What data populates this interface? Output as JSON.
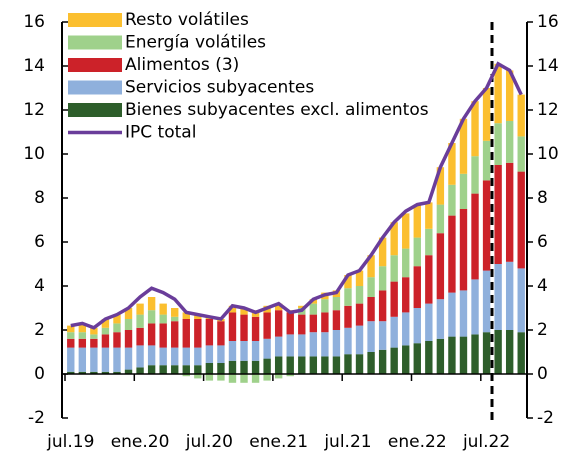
{
  "chart_data": {
    "type": "bar",
    "categories": [
      "jul.19",
      null,
      null,
      null,
      null,
      null,
      "ene.20",
      null,
      null,
      null,
      null,
      null,
      "jul.20",
      null,
      null,
      null,
      null,
      null,
      "ene.21",
      null,
      null,
      null,
      null,
      null,
      "jul.21",
      null,
      null,
      null,
      null,
      null,
      "ene.22",
      null,
      null,
      null,
      null,
      null,
      "jul.22",
      null,
      null,
      null
    ],
    "series": [
      {
        "name": "Resto volátiles",
        "type": "bar",
        "color": "#fbbf2f",
        "values": [
          0.3,
          0.4,
          0.3,
          0.4,
          0.4,
          0.5,
          0.5,
          0.6,
          0.5,
          0.4,
          0.3,
          0.2,
          0.1,
          0.1,
          0.3,
          0.3,
          0.3,
          0.3,
          0.3,
          0.1,
          0.1,
          0.2,
          0.3,
          0.3,
          0.6,
          0.7,
          1.0,
          1.3,
          1.5,
          1.6,
          1.5,
          1.2,
          1.7,
          1.9,
          2.5,
          2.5,
          2.4,
          2.7,
          2.3,
          1.9
        ]
      },
      {
        "name": "Energía volátiles",
        "type": "bar",
        "color": "#9fd18b",
        "values": [
          0.3,
          0.3,
          0.2,
          0.3,
          0.4,
          0.5,
          0.6,
          0.6,
          0.4,
          0.2,
          -0.1,
          -0.2,
          -0.3,
          -0.3,
          -0.4,
          -0.4,
          -0.4,
          -0.3,
          -0.2,
          -0.1,
          0.3,
          0.5,
          0.6,
          0.6,
          0.8,
          0.8,
          0.9,
          1.1,
          1.2,
          1.3,
          1.3,
          1.2,
          1.3,
          1.4,
          1.6,
          1.7,
          1.8,
          1.9,
          1.9,
          1.6
        ]
      },
      {
        "name": "Alimentos (3)",
        "type": "bar",
        "color": "#cc2229",
        "values": [
          0.4,
          0.4,
          0.4,
          0.6,
          0.7,
          0.8,
          0.8,
          1.0,
          1.1,
          1.2,
          1.3,
          1.3,
          1.2,
          1.1,
          1.3,
          1.2,
          1.1,
          1.2,
          1.2,
          1.0,
          0.9,
          0.8,
          0.9,
          0.9,
          1.0,
          1.0,
          1.1,
          1.4,
          1.6,
          1.6,
          1.9,
          2.2,
          3.0,
          3.5,
          3.7,
          3.9,
          4.1,
          4.5,
          4.5,
          4.4
        ]
      },
      {
        "name": "Servicios subyacentes",
        "type": "bar",
        "color": "#8fb0dc",
        "values": [
          1.1,
          1.1,
          1.1,
          1.1,
          1.1,
          1.0,
          1.0,
          0.9,
          0.8,
          0.8,
          0.8,
          0.8,
          0.8,
          0.8,
          0.9,
          0.9,
          0.9,
          0.9,
          0.9,
          1.0,
          1.0,
          1.1,
          1.1,
          1.2,
          1.2,
          1.3,
          1.4,
          1.3,
          1.4,
          1.5,
          1.6,
          1.7,
          1.8,
          2.0,
          2.1,
          2.5,
          2.8,
          3.0,
          3.1,
          2.9
        ]
      },
      {
        "name": "Bienes subyacentes excl. alimentos",
        "type": "bar",
        "color": "#2e5e2b",
        "values": [
          0.1,
          0.1,
          0.1,
          0.1,
          0.1,
          0.2,
          0.3,
          0.4,
          0.4,
          0.4,
          0.4,
          0.4,
          0.5,
          0.5,
          0.6,
          0.6,
          0.6,
          0.7,
          0.8,
          0.8,
          0.8,
          0.8,
          0.8,
          0.8,
          0.9,
          0.9,
          1.0,
          1.1,
          1.2,
          1.3,
          1.4,
          1.5,
          1.6,
          1.7,
          1.7,
          1.8,
          1.9,
          2.0,
          2.0,
          1.9
        ]
      },
      {
        "name": "IPC total",
        "type": "line",
        "color": "#6a3d9a",
        "values": [
          2.2,
          2.3,
          2.1,
          2.5,
          2.7,
          3.0,
          3.5,
          3.9,
          3.7,
          3.4,
          2.8,
          2.7,
          2.6,
          2.5,
          3.1,
          3.0,
          2.8,
          3.0,
          3.2,
          2.8,
          2.9,
          3.4,
          3.6,
          3.7,
          4.5,
          4.7,
          5.4,
          6.2,
          6.9,
          7.4,
          7.7,
          7.8,
          9.4,
          10.5,
          11.6,
          12.4,
          13.0,
          14.1,
          13.8,
          12.7
        ]
      }
    ],
    "ylim": [
      -2,
      16
    ],
    "yticks": [
      -2,
      0,
      2,
      4,
      6,
      8,
      10,
      12,
      14,
      16
    ],
    "y2lim": [
      -2,
      16
    ],
    "y2ticks": [
      -2,
      0,
      2,
      4,
      6,
      8,
      10,
      12,
      14,
      16
    ],
    "legend": "top-left"
  }
}
